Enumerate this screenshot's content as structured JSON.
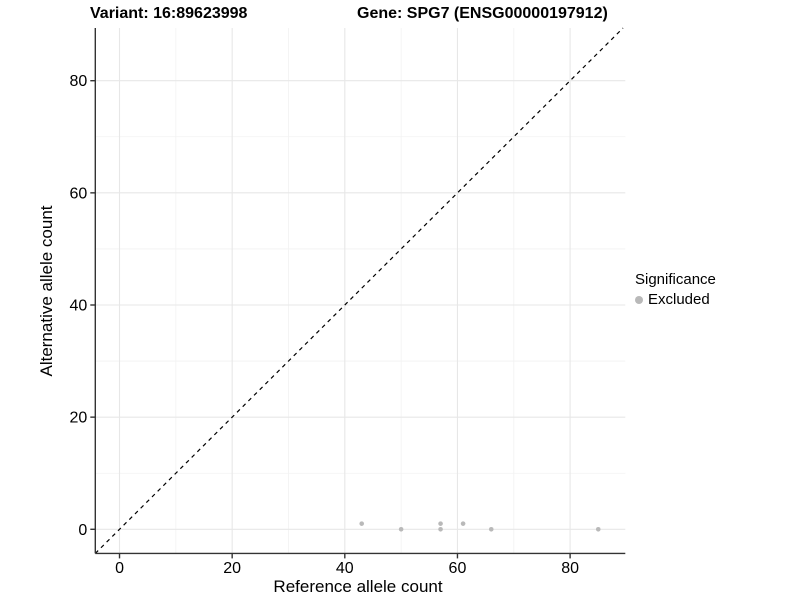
{
  "titles": {
    "left": "Variant: 16:89623998",
    "right": "Gene: SPG7 (ENSG00000197912)"
  },
  "axes": {
    "x_label": "Reference allele count",
    "y_label": "Alternative allele count"
  },
  "legend": {
    "title": "Significance",
    "items": [
      {
        "label": "Excluded",
        "color": "#b9b9b9"
      }
    ]
  },
  "chart_data": {
    "type": "scatter",
    "xlabel": "Reference allele count",
    "ylabel": "Alternative allele count",
    "xlim": [
      -4.3,
      89.8
    ],
    "ylim": [
      -4.3,
      89.4
    ],
    "xticks": [
      0,
      20,
      40,
      60,
      80
    ],
    "yticks": [
      0,
      20,
      40,
      60,
      80
    ],
    "minor_xticks": [
      10,
      30,
      50,
      70
    ],
    "minor_yticks": [
      10,
      30,
      50,
      70
    ],
    "grid": true,
    "legend_position": "right",
    "series": [
      {
        "name": "Excluded",
        "color": "#b9b9b9",
        "points": [
          [
            43,
            1
          ],
          [
            50,
            0
          ],
          [
            57,
            0
          ],
          [
            57,
            1
          ],
          [
            61,
            1
          ],
          [
            66,
            0
          ],
          [
            85,
            0
          ]
        ]
      }
    ],
    "reference_line": {
      "slope": 1,
      "intercept": 0,
      "style": "dashed",
      "color": "#000000"
    }
  },
  "colors": {
    "background": "#ffffff",
    "grid_major": "#e7e7e7",
    "grid_minor": "#f2f2f2",
    "axis": "#333333",
    "tick_label": "#000000",
    "point": "#b9b9b9"
  }
}
